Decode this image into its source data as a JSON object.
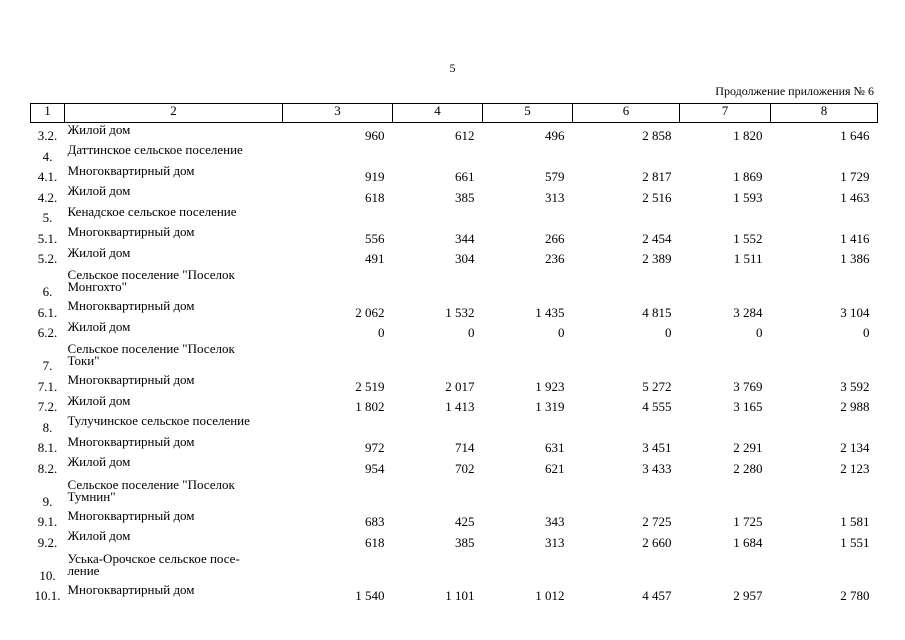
{
  "page_number": "5",
  "continuation_note": "Продолжение приложения № 6",
  "header": [
    "1",
    "2",
    "3",
    "4",
    "5",
    "6",
    "7",
    "8"
  ],
  "rows": [
    {
      "num": "3.2.",
      "name": "Жилой дом",
      "values": [
        "960",
        "612",
        "496",
        "2 858",
        "1 820",
        "1 646"
      ]
    },
    {
      "num": "4.",
      "name": "Даттинское сельское поселение",
      "values": [
        "",
        "",
        "",
        "",
        "",
        ""
      ]
    },
    {
      "num": "4.1.",
      "name": "Многоквартирный дом",
      "values": [
        "919",
        "661",
        "579",
        "2 817",
        "1 869",
        "1 729"
      ]
    },
    {
      "num": "4.2.",
      "name": "Жилой дом",
      "values": [
        "618",
        "385",
        "313",
        "2 516",
        "1 593",
        "1 463"
      ]
    },
    {
      "num": "5.",
      "name": "Кенадское сельское поселение",
      "values": [
        "",
        "",
        "",
        "",
        "",
        ""
      ]
    },
    {
      "num": "5.1.",
      "name": "Многоквартирный дом",
      "values": [
        "556",
        "344",
        "266",
        "2 454",
        "1 552",
        "1 416"
      ]
    },
    {
      "num": "5.2.",
      "name": "Жилой дом",
      "values": [
        "491",
        "304",
        "236",
        "2 389",
        "1 511",
        "1 386"
      ]
    },
    {
      "num": "6.",
      "name": "Сельское поселение \"Поселок\nМонгохто\"",
      "values": [
        "",
        "",
        "",
        "",
        "",
        ""
      ]
    },
    {
      "num": "6.1.",
      "name": "Многоквартирный дом",
      "values": [
        "2 062",
        "1 532",
        "1 435",
        "4 815",
        "3 284",
        "3 104"
      ]
    },
    {
      "num": "6.2.",
      "name": "Жилой дом",
      "values": [
        "0",
        "0",
        "0",
        "0",
        "0",
        "0"
      ]
    },
    {
      "num": "7.",
      "name": "Сельское поселение \"Поселок\nТоки\"",
      "values": [
        "",
        "",
        "",
        "",
        "",
        ""
      ]
    },
    {
      "num": "7.1.",
      "name": "Многоквартирный дом",
      "values": [
        "2 519",
        "2 017",
        "1 923",
        "5 272",
        "3 769",
        "3 592"
      ]
    },
    {
      "num": "7.2.",
      "name": "Жилой дом",
      "values": [
        "1 802",
        "1 413",
        "1 319",
        "4 555",
        "3 165",
        "2 988"
      ]
    },
    {
      "num": "8.",
      "name": "Тулучинское сельское поселение",
      "values": [
        "",
        "",
        "",
        "",
        "",
        ""
      ]
    },
    {
      "num": "8.1.",
      "name": "Многоквартирный дом",
      "values": [
        "972",
        "714",
        "631",
        "3 451",
        "2 291",
        "2 134"
      ]
    },
    {
      "num": "8.2.",
      "name": "Жилой дом",
      "values": [
        "954",
        "702",
        "621",
        "3 433",
        "2 280",
        "2 123"
      ]
    },
    {
      "num": "9.",
      "name": "Сельское поселение \"Поселок\nТумнин\"",
      "values": [
        "",
        "",
        "",
        "",
        "",
        ""
      ]
    },
    {
      "num": "9.1.",
      "name": "Многоквартирный дом",
      "values": [
        "683",
        "425",
        "343",
        "2 725",
        "1 725",
        "1 581"
      ]
    },
    {
      "num": "9.2.",
      "name": "Жилой дом",
      "values": [
        "618",
        "385",
        "313",
        "2 660",
        "1 684",
        "1 551"
      ]
    },
    {
      "num": "10.",
      "name": "Уська-Орочское сельское посе-\nление",
      "values": [
        "",
        "",
        "",
        "",
        "",
        ""
      ]
    },
    {
      "num": "10.1.",
      "name": "Многоквартирный дом",
      "values": [
        "1 540",
        "1 101",
        "1 012",
        "4 457",
        "2 957",
        "2 780"
      ]
    }
  ]
}
